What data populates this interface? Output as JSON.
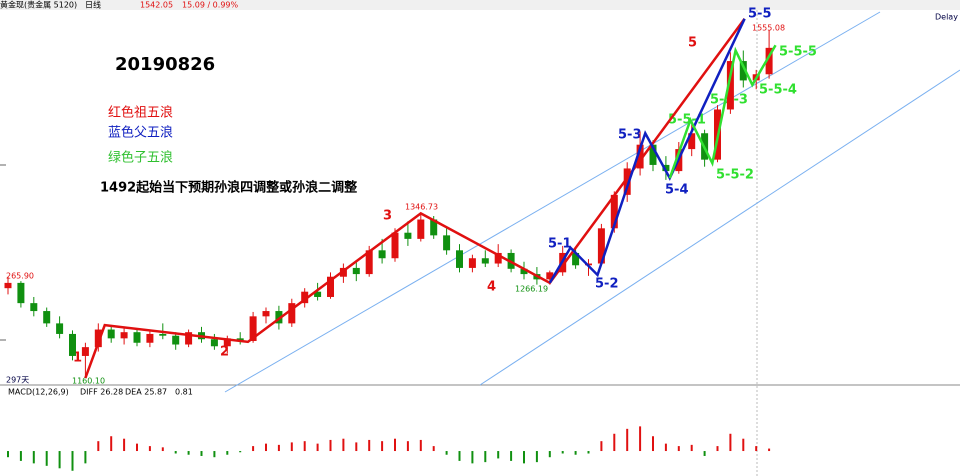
{
  "header": {
    "symbol": "黄金现(贵金属 5120)",
    "period": "日线",
    "last": "1542.05",
    "change": "15.09 / 0.99%",
    "delay": "Delay"
  },
  "annotations": {
    "date": "20190826",
    "red_note": "红色祖五浪",
    "blue_note": "蓝色父五浪",
    "green_note": "绿色子五浪",
    "main_note": "1492起始当下预期孙浪四调整或孙浪二调整",
    "red_labels": [
      "1",
      "2",
      "3",
      "4",
      "5"
    ],
    "blue_labels": [
      "5-1",
      "5-2",
      "5-3",
      "5-4",
      "5-5"
    ],
    "green_labels": [
      "5-5-1",
      "5-5-2",
      "5-5-3",
      "5-5-4",
      "5-5-5"
    ],
    "price_labels": [
      "1346.73",
      "1160.10",
      "1266.19",
      "1555.08",
      "265.90"
    ],
    "bars_count": "297天"
  },
  "chart_data": {
    "type": "candlestick",
    "ylim": [
      1152,
      1578
    ],
    "ohlc": [
      [
        1262,
        1275,
        1255,
        1268
      ],
      [
        1268,
        1270,
        1240,
        1245
      ],
      [
        1245,
        1252,
        1230,
        1236
      ],
      [
        1236,
        1240,
        1218,
        1222
      ],
      [
        1222,
        1230,
        1205,
        1210
      ],
      [
        1210,
        1214,
        1180,
        1185
      ],
      [
        1185,
        1200,
        1160,
        1195
      ],
      [
        1195,
        1222,
        1190,
        1215
      ],
      [
        1215,
        1220,
        1200,
        1205
      ],
      [
        1205,
        1218,
        1198,
        1212
      ],
      [
        1212,
        1216,
        1196,
        1200
      ],
      [
        1200,
        1214,
        1195,
        1210
      ],
      [
        1210,
        1222,
        1204,
        1208
      ],
      [
        1208,
        1212,
        1192,
        1198
      ],
      [
        1198,
        1215,
        1195,
        1212
      ],
      [
        1212,
        1218,
        1200,
        1204
      ],
      [
        1204,
        1210,
        1192,
        1196
      ],
      [
        1196,
        1208,
        1188,
        1205
      ],
      [
        1205,
        1212,
        1198,
        1202
      ],
      [
        1202,
        1235,
        1200,
        1230
      ],
      [
        1230,
        1240,
        1222,
        1236
      ],
      [
        1236,
        1242,
        1215,
        1222
      ],
      [
        1222,
        1250,
        1218,
        1245
      ],
      [
        1245,
        1262,
        1240,
        1258
      ],
      [
        1258,
        1268,
        1248,
        1252
      ],
      [
        1252,
        1280,
        1250,
        1275
      ],
      [
        1275,
        1290,
        1268,
        1285
      ],
      [
        1285,
        1292,
        1270,
        1278
      ],
      [
        1278,
        1310,
        1275,
        1305
      ],
      [
        1305,
        1318,
        1290,
        1296
      ],
      [
        1296,
        1330,
        1292,
        1325
      ],
      [
        1325,
        1338,
        1310,
        1318
      ],
      [
        1318,
        1347,
        1315,
        1340
      ],
      [
        1340,
        1344,
        1318,
        1322
      ],
      [
        1322,
        1330,
        1300,
        1305
      ],
      [
        1305,
        1312,
        1280,
        1285
      ],
      [
        1285,
        1300,
        1280,
        1296
      ],
      [
        1296,
        1305,
        1286,
        1290
      ],
      [
        1290,
        1312,
        1286,
        1302
      ],
      [
        1302,
        1306,
        1280,
        1284
      ],
      [
        1284,
        1292,
        1272,
        1278
      ],
      [
        1278,
        1286,
        1266,
        1272
      ],
      [
        1272,
        1282,
        1266,
        1280
      ],
      [
        1280,
        1310,
        1276,
        1302
      ],
      [
        1302,
        1306,
        1284,
        1288
      ],
      [
        1288,
        1295,
        1276,
        1290
      ],
      [
        1290,
        1335,
        1288,
        1330
      ],
      [
        1330,
        1372,
        1325,
        1368
      ],
      [
        1368,
        1405,
        1360,
        1398
      ],
      [
        1398,
        1440,
        1390,
        1425
      ],
      [
        1425,
        1430,
        1395,
        1402
      ],
      [
        1402,
        1412,
        1385,
        1395
      ],
      [
        1395,
        1428,
        1392,
        1420
      ],
      [
        1420,
        1448,
        1412,
        1438
      ],
      [
        1438,
        1442,
        1400,
        1408
      ],
      [
        1408,
        1470,
        1405,
        1465
      ],
      [
        1465,
        1530,
        1460,
        1520
      ],
      [
        1520,
        1532,
        1490,
        1498
      ],
      [
        1498,
        1510,
        1488,
        1505
      ],
      [
        1505,
        1555,
        1500,
        1535
      ]
    ],
    "up_color": "#e01010",
    "down_color": "#109010",
    "waves": [
      {
        "color": "#e01010",
        "x": [
          6,
          7.5,
          18.6,
          32,
          42,
          57.1
        ],
        "y": [
          1160,
          1220,
          1201,
          1347,
          1268,
          1568
        ]
      },
      {
        "color": "#1020c0",
        "x": [
          42,
          43.6,
          45.7,
          49.4,
          51.3,
          57.1
        ],
        "y": [
          1268,
          1308,
          1277,
          1438,
          1387,
          1568
        ]
      },
      {
        "color": "#30e030",
        "x": [
          51.3,
          52.9,
          54.6,
          56.4,
          57.7,
          59.5
        ],
        "y": [
          1387,
          1453,
          1404,
          1532,
          1493,
          1538
        ]
      }
    ],
    "macd": {
      "label": "MACD(12,26,9)",
      "diff": "DIFF 26.28",
      "dea": "DEA 25.87",
      "hist_label": "0.81",
      "ylim": [
        -17,
        43
      ],
      "hist": [
        -5,
        -8,
        -10,
        -12,
        -14,
        -16,
        -10,
        8,
        12,
        10,
        6,
        4,
        3,
        -2,
        -3,
        -4,
        -5,
        -3,
        -1,
        4,
        6,
        5,
        7,
        8,
        6,
        9,
        10,
        7,
        9,
        8,
        10,
        8,
        9,
        4,
        -3,
        -8,
        -10,
        -9,
        -6,
        -8,
        -10,
        -9,
        -5,
        -2,
        -3,
        -2,
        8,
        14,
        18,
        20,
        12,
        6,
        4,
        5,
        -4,
        4,
        14,
        10,
        4,
        2
      ]
    }
  }
}
